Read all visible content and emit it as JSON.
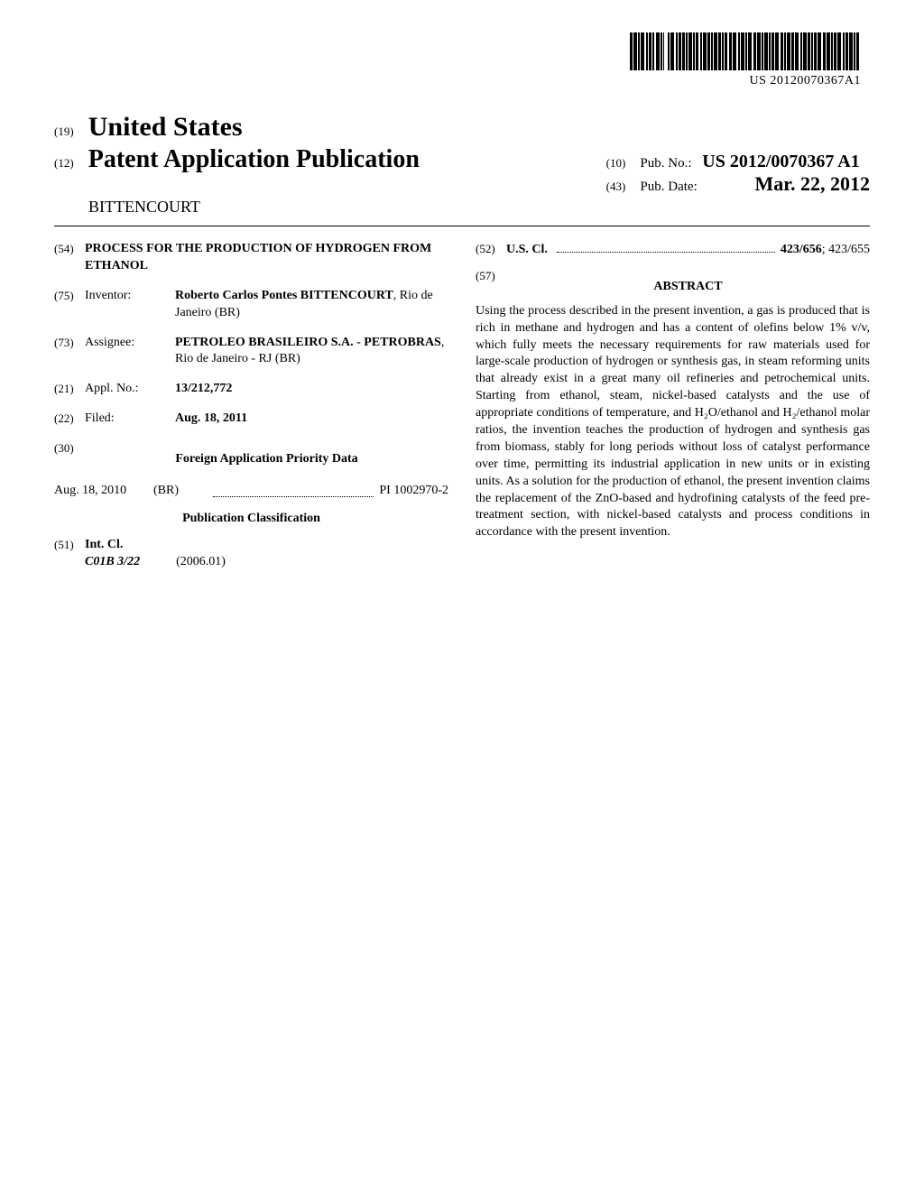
{
  "barcode_text": "US 20120070367A1",
  "header": {
    "code19": "(19)",
    "country": "United States",
    "code12": "(12)",
    "pub_type": "Patent Application Publication",
    "author_surname": "BITTENCOURT",
    "code10": "(10)",
    "pubno_label": "Pub. No.:",
    "pubno": "US 2012/0070367 A1",
    "code43": "(43)",
    "pubdate_label": "Pub. Date:",
    "pubdate": "Mar. 22, 2012"
  },
  "left": {
    "code54": "(54)",
    "title": "PROCESS FOR THE PRODUCTION OF HYDROGEN FROM ETHANOL",
    "code75": "(75)",
    "inventor_label": "Inventor:",
    "inventor_name": "Roberto Carlos Pontes BITTENCOURT",
    "inventor_loc": ", Rio de Janeiro (BR)",
    "code73": "(73)",
    "assignee_label": "Assignee:",
    "assignee_name": "PETROLEO BRASILEIRO S.A. - PETROBRAS",
    "assignee_loc": ", Rio de Janeiro - RJ (BR)",
    "code21": "(21)",
    "applno_label": "Appl. No.:",
    "applno": "13/212,772",
    "code22": "(22)",
    "filed_label": "Filed:",
    "filed": "Aug. 18, 2011",
    "code30": "(30)",
    "priority_heading": "Foreign Application Priority Data",
    "priority_date": "Aug. 18, 2010",
    "priority_country": "(BR)",
    "priority_num": "PI 1002970-2",
    "pubclass_heading": "Publication Classification",
    "code51": "(51)",
    "intcl_label": "Int. Cl.",
    "intcl_class": "C01B 3/22",
    "intcl_version": "(2006.01)"
  },
  "right": {
    "code52": "(52)",
    "uscl_label": "U.S. Cl.",
    "uscl_main": "423/656",
    "uscl_other": "; 423/655",
    "code57": "(57)",
    "abstract_heading": "ABSTRACT",
    "abstract_text": "Using the process described in the present invention, a gas is produced that is rich in methane and hydrogen and has a content of olefins below 1% v/v, which fully meets the necessary requirements for raw materials used for large-scale production of hydrogen or synthesis gas, in steam reforming units that already exist in a great many oil refineries and petrochemical units. Starting from ethanol, steam, nickel-based catalysts and the use of appropriate conditions of temperature, and H₂O/ethanol and H₂/ethanol molar ratios, the invention teaches the production of hydrogen and synthesis gas from biomass, stably for long periods without loss of catalyst performance over time, permitting its industrial application in new units or in existing units. As a solution for the production of ethanol, the present invention claims the replacement of the ZnO-based and hydrofining catalysts of the feed pre-treatment section, with nickel-based catalysts and process conditions in accordance with the present invention."
  },
  "barcode_widths": [
    3,
    1,
    4,
    1,
    2,
    1,
    4,
    2,
    2,
    1,
    3,
    1,
    2,
    2,
    4,
    1,
    2,
    1,
    1,
    4,
    2,
    1,
    4,
    2,
    2,
    1,
    3,
    1,
    3,
    1,
    2,
    1,
    4,
    1,
    2,
    1,
    3,
    2,
    2,
    1,
    4,
    1,
    3,
    1,
    2,
    1,
    4,
    1,
    3,
    1,
    2,
    1,
    3,
    2,
    3,
    1,
    4,
    2,
    2,
    1,
    4,
    1,
    2,
    1,
    4,
    2,
    3,
    1,
    4,
    1,
    2,
    1,
    4,
    1,
    2,
    1,
    3,
    1,
    4,
    2,
    3,
    1,
    2,
    1,
    4,
    1,
    3,
    1,
    4,
    2,
    2,
    1,
    4,
    1,
    3,
    1,
    2,
    1,
    3,
    1,
    4,
    2,
    3,
    1,
    4,
    1,
    2,
    1,
    3,
    1,
    4,
    2,
    2,
    1,
    3,
    1,
    4,
    1,
    2,
    1,
    3,
    2
  ]
}
